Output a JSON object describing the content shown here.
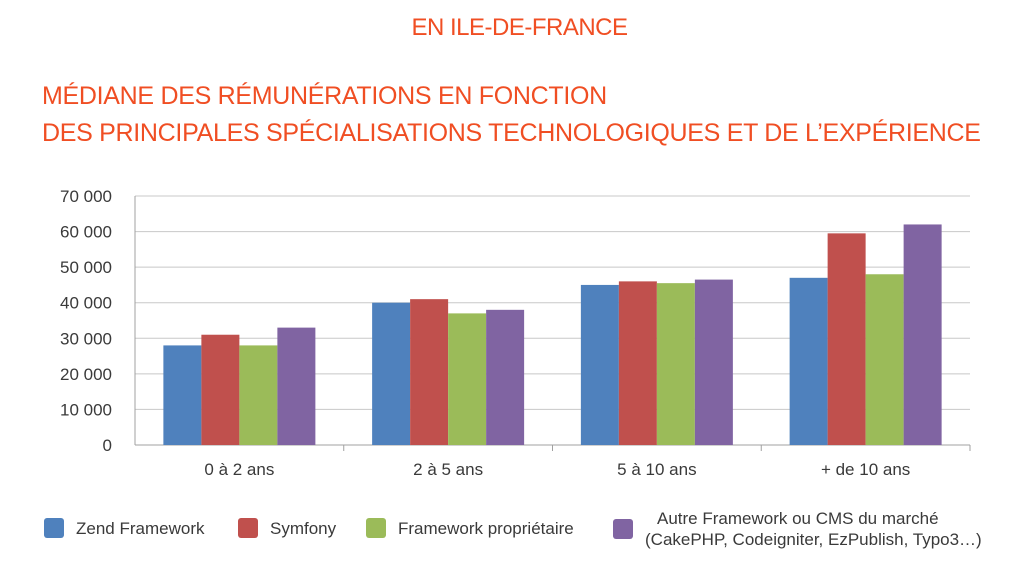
{
  "header": {
    "region": "EN ILE-DE-FRANCE",
    "title_line1": "MÉDIANE DES RÉMUNÉRATIONS EN FONCTION",
    "title_line2": "DES PRINCIPALES SPÉCIALISATIONS TECHNOLOGIQUES ET DE L’EXPÉRIENCE"
  },
  "colors": {
    "title": "#f04e23",
    "grid": "#c8c8c8",
    "text": "#3a3a3a"
  },
  "chart_data": {
    "type": "bar",
    "categories": [
      "0 à 2 ans",
      "2 à 5 ans",
      "5 à 10 ans",
      "+ de 10 ans"
    ],
    "series": [
      {
        "name": "Zend Framework",
        "color": "#4f81bd",
        "values": [
          28000,
          40000,
          45000,
          47000
        ]
      },
      {
        "name": "Symfony",
        "color": "#c0504d",
        "values": [
          31000,
          41000,
          46000,
          59500
        ]
      },
      {
        "name": "Framework propriétaire",
        "color": "#9bbb59",
        "values": [
          28000,
          37000,
          45500,
          48000
        ]
      },
      {
        "name": "Autre Framework ou CMS du marché",
        "name_line2": "(CakePHP, Codeigniter, EzPublish, Typo3…)",
        "color": "#8064a2",
        "values": [
          33000,
          38000,
          46500,
          62000
        ]
      }
    ],
    "ylim": [
      0,
      70000
    ],
    "yticks": [
      0,
      10000,
      20000,
      30000,
      40000,
      50000,
      60000,
      70000
    ],
    "ytick_labels": [
      "0",
      "10 000",
      "20 000",
      "30 000",
      "40 000",
      "50 000",
      "60 000",
      "70 000"
    ],
    "grid": true,
    "legend_position": "bottom"
  }
}
